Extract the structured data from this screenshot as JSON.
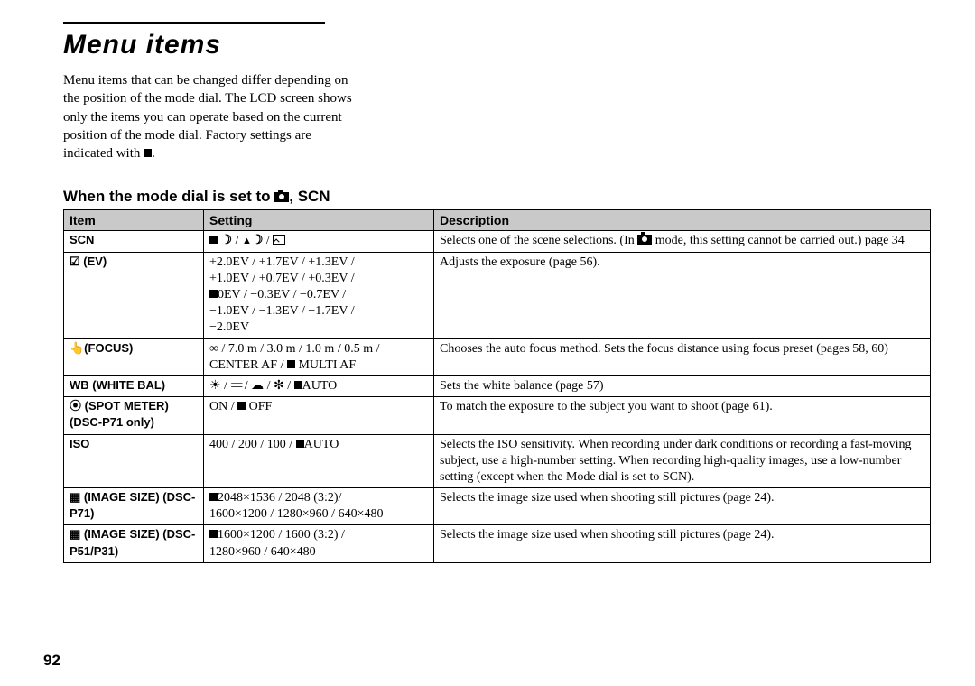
{
  "title": "Menu items",
  "intro_parts": {
    "p1": "Menu items that can be changed differ depending on the position of the mode dial. The LCD screen shows only the items you can operate based on the current position of the mode dial. Factory settings are indicated with ",
    "p2": "."
  },
  "section_heading": {
    "prefix": "When the mode dial is set to ",
    "suffix": ", SCN"
  },
  "table": {
    "headers": [
      "Item",
      "Setting",
      "Description"
    ],
    "rows": [
      {
        "item": "SCN",
        "setting_icons": true,
        "desc_a": "Selects one of the scene selections. (In ",
        "desc_b": " mode, this setting cannot be carried out.) page 34"
      },
      {
        "item_prefix": "☑",
        "item": " (EV)",
        "setting_lines": [
          "+2.0EV / +1.7EV / +1.3EV /",
          "+1.0EV / +0.7EV / +0.3EV /",
          "■0EV / −0.3EV / −0.7EV /",
          "−1.0EV / −1.3EV / −1.7EV /",
          "−2.0EV"
        ],
        "desc": "Adjusts the exposure (page 56)."
      },
      {
        "item_prefix": "👆",
        "item": "(FOCUS)",
        "setting_lines": [
          "∞ / 7.0 m / 3.0 m / 1.0 m / 0.5 m /",
          "CENTER AF / ■ MULTI AF"
        ],
        "desc": "Chooses the auto focus method. Sets the focus distance using focus preset (pages 58, 60)"
      },
      {
        "item": "WB (WHITE BAL)",
        "setting_wb": true,
        "desc": "Sets the white balance (page 57)"
      },
      {
        "item_prefix": "⦿",
        "item": " (SPOT METER) (DSC-P71 only)",
        "setting_lines": [
          "ON / ■ OFF"
        ],
        "desc": "To match the exposure to the subject you want to shoot (page 61)."
      },
      {
        "item": "ISO",
        "setting_lines": [
          "400 / 200 / 100 / ■AUTO"
        ],
        "desc": "Selects the ISO sensitivity. When recording under dark conditions or recording a fast-moving subject, use a high-number setting. When recording high-quality images, use a low-number setting (except when the Mode dial is set to SCN)."
      },
      {
        "item_prefix": "▦",
        "item": " (IMAGE SIZE) (DSC-P71)",
        "setting_lines": [
          "■2048×1536 / 2048 (3:2)/",
          "1600×1200 / 1280×960 / 640×480"
        ],
        "desc": "Selects the image size used when shooting still pictures (page 24)."
      },
      {
        "item_prefix": "▦",
        "item": " (IMAGE SIZE) (DSC-P51/P31)",
        "setting_lines": [
          "■1600×1200 / 1600 (3:2) /",
          "1280×960 / 640×480"
        ],
        "desc": "Selects the image size used when shooting still pictures (page 24)."
      }
    ]
  },
  "page_number": "92",
  "colors": {
    "header_bg": "#c9c9c9",
    "text": "#000000",
    "bg": "#ffffff"
  }
}
